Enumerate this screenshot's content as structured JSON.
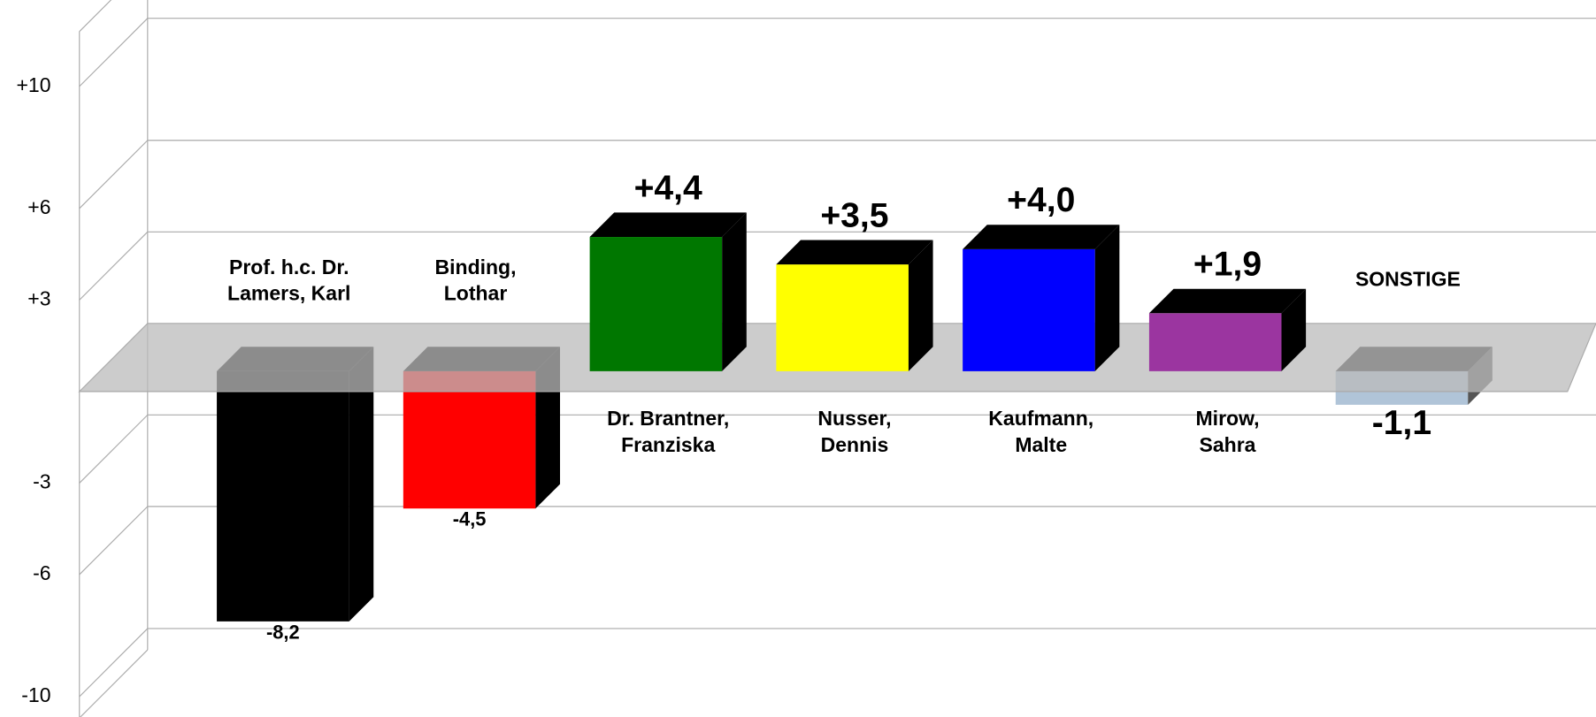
{
  "chart_data": {
    "type": "bar3d",
    "categories": [
      [
        "Prof. h.c. Dr.",
        "Lamers, Karl"
      ],
      [
        "Binding,",
        "Lothar"
      ],
      [
        "Dr. Brantner,",
        "Franziska"
      ],
      [
        "Nusser,",
        "Dennis"
      ],
      [
        "Kaufmann,",
        "Malte"
      ],
      [
        "Mirow,",
        "Sahra"
      ],
      [
        "SONSTIGE"
      ]
    ],
    "values": [
      -8.2,
      -4.5,
      4.4,
      3.5,
      4.0,
      1.9,
      -1.1
    ],
    "value_labels": [
      "-8,2",
      "-4,5",
      "+4,4",
      "+3,5",
      "+4,0",
      "+1,9",
      "-1,1"
    ],
    "colors": [
      "#000000",
      "#ff0000",
      "#007700",
      "#ffff00",
      "#0000ff",
      "#9b35a0",
      "#b0c4d8"
    ],
    "ylim": [
      -10.7,
      11.8
    ],
    "yticks": [
      {
        "value": 10,
        "label": "+10"
      },
      {
        "value": 6,
        "label": "+6"
      },
      {
        "value": 3,
        "label": "+3"
      },
      -3,
      -6,
      -10
    ],
    "grid": true
  }
}
